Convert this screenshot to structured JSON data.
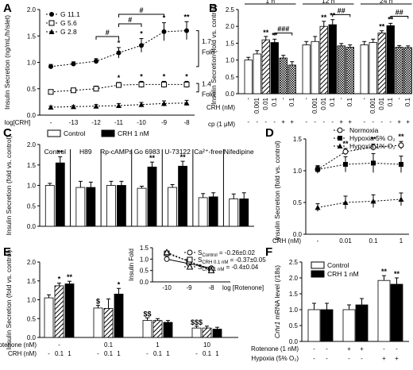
{
  "chart_data": [
    {
      "panel": "A",
      "type": "line",
      "ylabel": "Insulin Secretion (ng/mL/h/islet)",
      "xlabel": "log[CRH]",
      "categories": [
        "-",
        "-13",
        "-12",
        "-11",
        "-10",
        "-9",
        "-8"
      ],
      "ylim": [
        0,
        2.0
      ],
      "yticks": [
        "0.0",
        "0.5",
        "1.0",
        "1.5",
        "2.0"
      ],
      "series": [
        {
          "name": "G 11.1",
          "values": [
            0.92,
            0.97,
            1.02,
            1.18,
            1.32,
            1.58,
            1.6
          ],
          "errors": [
            0.04,
            0.04,
            0.05,
            0.1,
            0.13,
            0.17,
            0.17
          ],
          "marker": "filled-circle",
          "sig": [
            "",
            "",
            "",
            "*",
            "*",
            "*",
            "**"
          ]
        },
        {
          "name": "G 5.6",
          "values": [
            0.44,
            0.47,
            0.5,
            0.57,
            0.58,
            0.58,
            0.58
          ],
          "errors": [
            0.04,
            0.04,
            0.05,
            0.05,
            0.06,
            0.06,
            0.06
          ],
          "marker": "open-square",
          "sig": [
            "",
            "",
            "",
            "*",
            "*",
            "*",
            "*"
          ]
        },
        {
          "name": "G 2.8",
          "values": [
            0.15,
            0.16,
            0.17,
            0.18,
            0.2,
            0.22,
            0.23
          ],
          "errors": [
            0.02,
            0.02,
            0.03,
            0.04,
            0.04,
            0.05,
            0.05
          ],
          "marker": "filled-triangle",
          "sig": [
            "",
            "",
            "",
            "",
            "",
            "",
            ""
          ]
        }
      ],
      "brackets": [
        {
          "label": "#",
          "from": 2,
          "to": 3
        },
        {
          "label": "#",
          "from": 3,
          "to": 4
        },
        {
          "label": "#",
          "from": 3,
          "to": 5
        }
      ],
      "fold_labels": [
        [
          "1.7",
          "Fold"
        ],
        [
          "1.4",
          "Fold"
        ]
      ]
    },
    {
      "panel": "B",
      "type": "bar",
      "ylabel": "Insulin Secretion (fold vs. control)",
      "ylim": [
        0,
        2.5
      ],
      "yticks": [
        "0.0",
        "0.5",
        "1.0",
        "1.5",
        "2.0",
        "2.5"
      ],
      "groups": [
        {
          "label": "1 h",
          "values": [
            1.0,
            1.18,
            1.6,
            1.52,
            1.06,
            0.85
          ],
          "errors": [
            0.08,
            0.1,
            0.1,
            0.1,
            0.08,
            0.1
          ],
          "sig": [
            "",
            "",
            "**",
            "**",
            "",
            ""
          ]
        },
        {
          "label": "12 h",
          "values": [
            1.45,
            1.55,
            2.0,
            2.05,
            1.42,
            1.38
          ],
          "errors": [
            0.1,
            0.15,
            0.15,
            0.15,
            0.07,
            0.07
          ],
          "sig": [
            "",
            "",
            "**",
            "**",
            "",
            ""
          ]
        },
        {
          "label": "24 h",
          "values": [
            1.45,
            1.52,
            1.8,
            2.02,
            1.38,
            1.37
          ],
          "errors": [
            0.1,
            0.1,
            0.07,
            0.07,
            0.05,
            0.05
          ],
          "sig": [
            "",
            "",
            "**",
            "**",
            "",
            ""
          ]
        }
      ],
      "crh_label": "CRH (nM)",
      "crh_values": [
        "-",
        "0.001",
        "0.01",
        "0.1",
        "-",
        "0.1"
      ],
      "cp_label": "cp (1 μM)",
      "cp_values": [
        "-",
        "-",
        "-",
        "-",
        "+",
        "+"
      ],
      "brackets": [
        [
          "###"
        ],
        [
          "##"
        ],
        [
          "##"
        ]
      ]
    },
    {
      "panel": "C",
      "type": "bar",
      "ylabel": "Insulin Secretion (fold vs. control)",
      "ylim": [
        0,
        2.0
      ],
      "yticks": [
        "0.0",
        "0.5",
        "1.0",
        "1.5",
        "2.0"
      ],
      "legend": [
        "Control",
        "CRH 1 nM"
      ],
      "categories": [
        "Control",
        "H89",
        "Rp-cAMPs",
        "Go 6983",
        "U-73122",
        "Ca²⁺-free",
        "Nifedipine"
      ],
      "series": [
        {
          "name": "Control",
          "values": [
            1.0,
            0.95,
            1.0,
            0.93,
            0.95,
            0.7,
            0.67
          ],
          "errors": [
            0.05,
            0.15,
            0.1,
            0.05,
            0.07,
            0.1,
            0.12
          ]
        },
        {
          "name": "CRH 1 nM",
          "values": [
            1.55,
            0.95,
            1.0,
            1.45,
            1.47,
            0.72,
            0.67
          ],
          "errors": [
            0.15,
            0.13,
            0.1,
            0.12,
            0.12,
            0.1,
            0.15
          ]
        }
      ],
      "sig": [
        "**",
        "",
        "",
        "**",
        "**",
        "",
        ""
      ]
    },
    {
      "panel": "D",
      "type": "line",
      "ylabel": "Insulin Secretion (fold vs. control)",
      "xlabel": "CRH (nM)",
      "categories": [
        "-",
        "0.01",
        "0.1",
        "1"
      ],
      "ylim": [
        0,
        1.5
      ],
      "yticks": [
        "0.0",
        "0.5",
        "1.0",
        "1.5"
      ],
      "series": [
        {
          "name": "Normoxia",
          "values": [
            1.02,
            1.3,
            1.37,
            1.4
          ],
          "errors": [
            0.05,
            0.05,
            0.05,
            0.06
          ],
          "marker": "open-circle",
          "sig": [
            "",
            "**",
            "**",
            "**"
          ]
        },
        {
          "name": "Hypoxia 5% O₂",
          "values": [
            1.02,
            1.1,
            1.12,
            1.1
          ],
          "errors": [
            0.06,
            0.12,
            0.15,
            0.13
          ],
          "marker": "filled-square",
          "sig": [
            "",
            "",
            "",
            ""
          ]
        },
        {
          "name": "Hypoxia 1% O₂",
          "values": [
            0.42,
            0.5,
            0.52,
            0.55
          ],
          "errors": [
            0.06,
            0.1,
            0.1,
            0.1
          ],
          "marker": "filled-triangle",
          "sig": [
            "",
            "",
            "",
            ""
          ]
        }
      ]
    },
    {
      "panel": "E",
      "type": "bar",
      "ylabel": "Insulin Secretion (fold vs. control)",
      "ylim": [
        0,
        2.0
      ],
      "yticks": [
        "0.0",
        "0.5",
        "1.0",
        "1.5",
        "2.0"
      ],
      "rotenone_label": "Rotenone (nM)",
      "rotenone_values": [
        "-",
        "0.1",
        "1",
        "10"
      ],
      "crh_label": "CRH (nM)",
      "crh_values": [
        "-",
        "0.1",
        "1"
      ],
      "groups": [
        {
          "values": [
            1.05,
            1.37,
            1.42
          ],
          "errors": [
            0.08,
            0.07,
            0.07
          ],
          "sig": [
            "",
            "*",
            "**"
          ]
        },
        {
          "values": [
            0.78,
            0.77,
            1.15
          ],
          "errors": [
            0.07,
            0.25,
            0.15
          ],
          "sig": [
            "$",
            "",
            "*"
          ]
        },
        {
          "values": [
            0.45,
            0.45,
            0.4
          ],
          "errors": [
            0.07,
            0.05,
            0.05
          ],
          "sig": [
            "$$",
            "",
            ""
          ]
        },
        {
          "values": [
            0.25,
            0.25,
            0.22
          ],
          "errors": [
            0.05,
            0.05,
            0.05
          ],
          "sig": [
            "$$$",
            "",
            ""
          ]
        }
      ],
      "inset": {
        "ylabel": "Insulin Fold",
        "xlabel": "log [Rotenone]",
        "xticks": [
          "-10",
          "-9",
          "-8"
        ],
        "ylim": [
          0,
          1.5
        ],
        "yticks": [
          "0.0",
          "0.5",
          "1.0",
          "1.5"
        ],
        "legend": [
          {
            "label": "S",
            "sub": "Control",
            "value": " = -0.26±0.02"
          },
          {
            "label": "S",
            "sub": "CRH 0.1 nM",
            "value": " = -0.37±0.05"
          },
          {
            "label": "S",
            "sub": "CRH 1 nM",
            "value": " = -0.4±0.04"
          }
        ]
      }
    },
    {
      "panel": "F",
      "type": "bar",
      "ylabel_italic": "Crhr1",
      "ylabel_rest": " mRNA level (/18s)",
      "ylim": [
        0,
        2.5
      ],
      "yticks": [
        "0.0",
        "0.5",
        "1.0",
        "1.5",
        "2.0",
        "2.5"
      ],
      "legend": [
        "Control",
        "CRH 1 nM"
      ],
      "series": [
        {
          "name": "Control",
          "values": [
            1.0,
            1.0,
            1.92
          ],
          "errors": [
            0.2,
            0.15,
            0.15
          ]
        },
        {
          "name": "CRH 1 nM",
          "values": [
            1.0,
            1.15,
            1.8
          ],
          "errors": [
            0.2,
            0.2,
            0.2
          ]
        }
      ],
      "sig": [
        [
          "",
          ""
        ],
        [
          "",
          ""
        ],
        [
          "**",
          "**"
        ]
      ],
      "rotenone_label": "Rotenone (1 nM)",
      "rotenone_values": [
        "-",
        "+",
        "-"
      ],
      "hypoxia_label": "Hypoxia (5% O₂)",
      "hypoxia_values": [
        "-",
        "-",
        "+"
      ]
    }
  ]
}
